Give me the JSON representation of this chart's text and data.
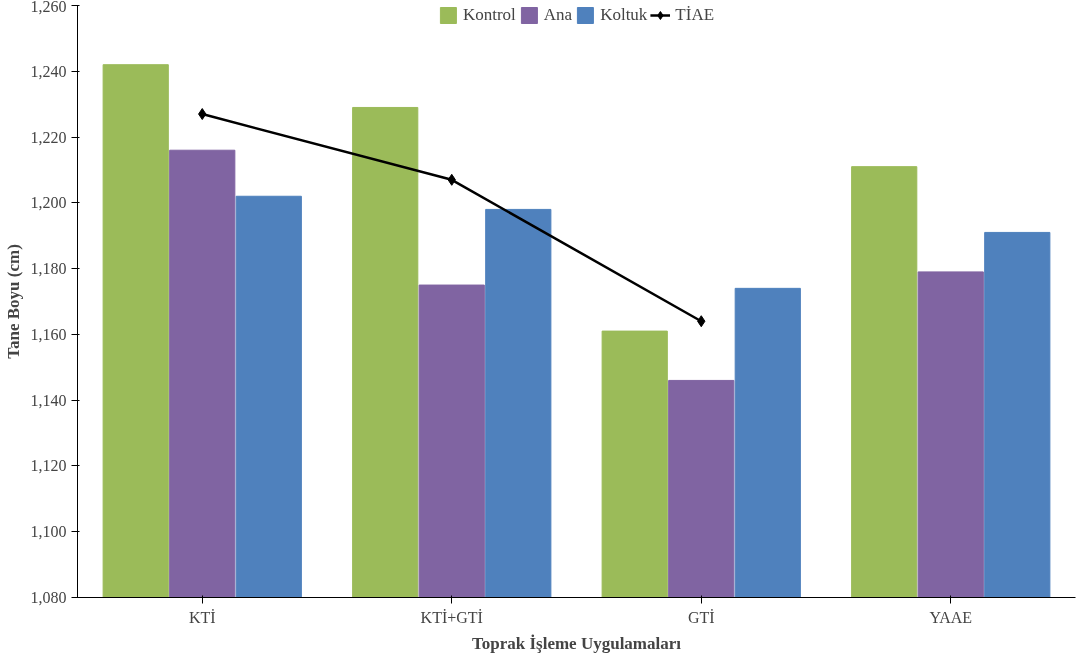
{
  "chart_data": {
    "type": "bar",
    "xlabel": "Toprak İşleme Uygulamaları",
    "ylabel": "Tane Boyu (cm)",
    "categories": [
      "KTİ",
      "KTİ+GTİ",
      "GTİ",
      "YAAE"
    ],
    "series": [
      {
        "name": "Kontrol",
        "color": "#9bbb59",
        "values": [
          1242,
          1229,
          1161,
          1211
        ]
      },
      {
        "name": "Ana",
        "color": "#8064a2",
        "values": [
          1216,
          1175,
          1146,
          1179
        ]
      },
      {
        "name": "Koltuk",
        "color": "#4f81bd",
        "values": [
          1202,
          1198,
          1174,
          1191
        ]
      },
      {
        "name": "TİAE",
        "type": "line",
        "color": "#000000",
        "marker": "diamond",
        "values": [
          1227,
          1207,
          1164,
          null
        ]
      }
    ],
    "ylim": [
      1080,
      1260
    ],
    "yticks": [
      {
        "value": 1080,
        "label": "1,080"
      },
      {
        "value": 1100,
        "label": "1,100"
      },
      {
        "value": 1120,
        "label": "1,120"
      },
      {
        "value": 1140,
        "label": "1,140"
      },
      {
        "value": 1160,
        "label": "1,160"
      },
      {
        "value": 1180,
        "label": "1,180"
      },
      {
        "value": 1200,
        "label": "1,200"
      },
      {
        "value": 1220,
        "label": "1,220"
      },
      {
        "value": 1240,
        "label": "1,240"
      },
      {
        "value": 1260,
        "label": "1,260"
      }
    ],
    "grid": false,
    "legend": "top"
  }
}
